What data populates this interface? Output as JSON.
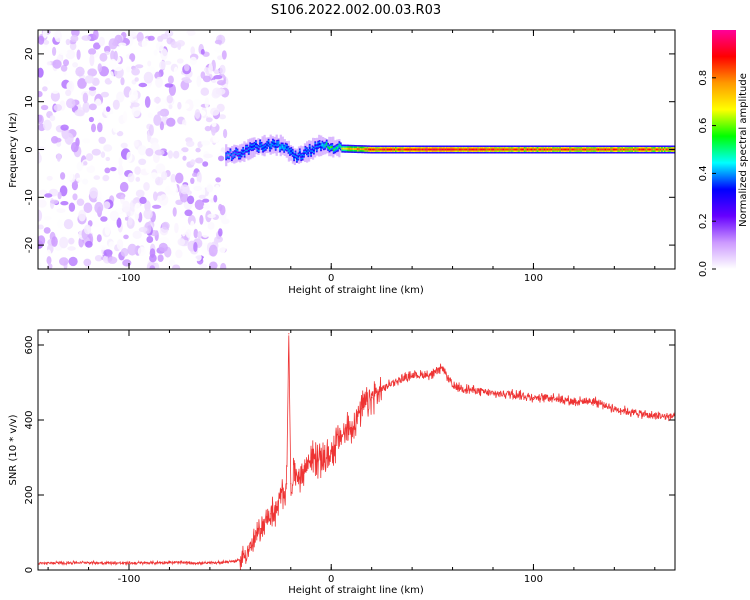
{
  "title": "S106.2022.002.00.03.R03",
  "chart_data": [
    {
      "type": "heatmap",
      "title": "S106.2022.002.00.03.R03",
      "xlabel": "Height of straight line (km)",
      "ylabel": "Frequency (Hz)",
      "xlim": [
        -145,
        170
      ],
      "ylim": [
        -25,
        25
      ],
      "x_ticks": [
        -100,
        0,
        100
      ],
      "y_ticks": [
        -20,
        -10,
        0,
        10,
        20
      ],
      "colorbar": {
        "label": "Normalized spectral amplitude",
        "range": [
          0,
          1
        ],
        "ticks": [
          0.0,
          0.2,
          0.4,
          0.6,
          0.8
        ],
        "colormap": [
          "#ffffff",
          "#cc99ff",
          "#6600ff",
          "#0000ff",
          "#00ffff",
          "#00ff00",
          "#ffff00",
          "#ff9900",
          "#ff0000",
          "#ff0099"
        ]
      },
      "noise_region": {
        "x_range": [
          -145,
          -52
        ],
        "freq_range": [
          -25,
          25
        ],
        "amplitude_range": [
          0.0,
          0.15
        ]
      },
      "signal_band": [
        {
          "x": -52,
          "freq": -1.2,
          "amplitude": 0.35
        },
        {
          "x": -45,
          "freq": -0.8,
          "amplitude": 0.45
        },
        {
          "x": -38,
          "freq": 0.5,
          "amplitude": 0.5
        },
        {
          "x": -30,
          "freq": 1.0,
          "amplitude": 0.55
        },
        {
          "x": -24,
          "freq": 0.8,
          "amplitude": 0.6
        },
        {
          "x": -18,
          "freq": -1.5,
          "amplitude": 0.5
        },
        {
          "x": -12,
          "freq": -0.5,
          "amplitude": 0.5
        },
        {
          "x": -6,
          "freq": 0.8,
          "amplitude": 0.55
        },
        {
          "x": 0,
          "freq": 0.6,
          "amplitude": 0.75
        },
        {
          "x": 5,
          "freq": 0.2,
          "amplitude": 0.7
        },
        {
          "x": 20,
          "freq": 0.0,
          "amplitude": 0.85
        },
        {
          "x": 50,
          "freq": 0.0,
          "amplitude": 0.9
        },
        {
          "x": 100,
          "freq": 0.0,
          "amplitude": 0.85
        },
        {
          "x": 150,
          "freq": 0.0,
          "amplitude": 0.85
        },
        {
          "x": 170,
          "freq": 0.0,
          "amplitude": 0.8
        }
      ]
    },
    {
      "type": "line",
      "xlabel": "Height of straight line (km)",
      "ylabel": "SNR (10 * v/v)",
      "xlim": [
        -145,
        170
      ],
      "ylim": [
        0,
        640
      ],
      "x_ticks": [
        -100,
        0,
        100
      ],
      "y_ticks": [
        0,
        200,
        400,
        600
      ],
      "line_color": "#ee3333",
      "series": [
        {
          "x": [
            -145,
            -120,
            -100,
            -80,
            -60,
            -45,
            -40,
            -35,
            -30,
            -27,
            -25,
            -22,
            -21,
            -20,
            -18,
            -15,
            -10,
            -5,
            0,
            5,
            10,
            15,
            20,
            25,
            30,
            40,
            50,
            55,
            60,
            70,
            80,
            90,
            100,
            110,
            120,
            130,
            140,
            150,
            160,
            170
          ],
          "values": [
            18,
            20,
            18,
            20,
            18,
            25,
            60,
            110,
            150,
            160,
            190,
            230,
            630,
            230,
            260,
            250,
            300,
            290,
            310,
            360,
            380,
            430,
            460,
            480,
            500,
            520,
            520,
            540,
            490,
            480,
            470,
            470,
            460,
            460,
            450,
            450,
            430,
            420,
            410,
            410
          ]
        }
      ]
    }
  ]
}
